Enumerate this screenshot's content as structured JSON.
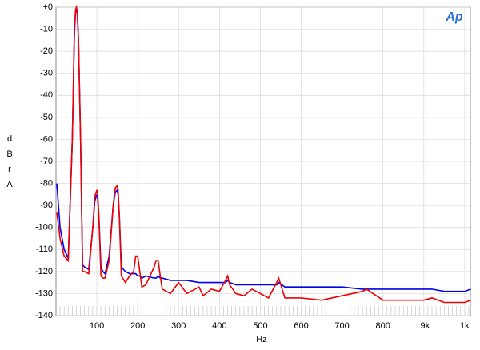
{
  "chart_data": {
    "type": "line",
    "logo": "Ap",
    "xlabel": "Hz",
    "ylabel": "dBr",
    "ylabel_unit": "A",
    "x": [
      2,
      10,
      20,
      30,
      40,
      45,
      48,
      50,
      52,
      55,
      60,
      65,
      70,
      80,
      90,
      95,
      100,
      102,
      105,
      110,
      115,
      120,
      130,
      140,
      145,
      150,
      152,
      155,
      160,
      170,
      180,
      190,
      195,
      200,
      205,
      210,
      220,
      240,
      245,
      250,
      255,
      260,
      280,
      300,
      320,
      350,
      360,
      380,
      400,
      415,
      420,
      425,
      440,
      460,
      480,
      500,
      520,
      540,
      545,
      560,
      600,
      650,
      700,
      750,
      760,
      800,
      850,
      900,
      920,
      950,
      1000,
      1015
    ],
    "series": [
      {
        "color": "#0000ee",
        "values": [
          -80,
          -100,
          -110,
          -114,
          -60,
          -12,
          -2,
          0,
          -3,
          -15,
          -60,
          -117,
          -118,
          -119,
          -100,
          -88,
          -85,
          -87,
          -95,
          -118,
          -120,
          -121,
          -113,
          -90,
          -84,
          -83,
          -85,
          -95,
          -118,
          -120,
          -121,
          -121,
          -121,
          -122,
          -122,
          -123,
          -122,
          -123,
          -123,
          -122,
          -123,
          -123,
          -124,
          -124,
          -124,
          -125,
          -125,
          -125,
          -125,
          -125,
          -124,
          -125,
          -126,
          -126,
          -126,
          -126,
          -126,
          -126,
          -125,
          -127,
          -127,
          -127,
          -127,
          -128,
          -128,
          -128,
          -128,
          -128,
          -128,
          -129,
          -129,
          -128
        ]
      },
      {
        "color": "#ee0000",
        "values": [
          -93,
          -105,
          -113,
          -115,
          -60,
          -10,
          -1,
          0,
          -2,
          -15,
          -60,
          -120,
          -120,
          -121,
          -100,
          -86,
          -83,
          -85,
          -95,
          -122,
          -123,
          -123,
          -115,
          -90,
          -82,
          -81,
          -83,
          -95,
          -122,
          -125,
          -122,
          -120,
          -113,
          -113,
          -120,
          -127,
          -126,
          -118,
          -115,
          -115,
          -122,
          -128,
          -130,
          -125,
          -130,
          -127,
          -131,
          -128,
          -129,
          -124,
          -122,
          -126,
          -130,
          -131,
          -128,
          -130,
          -132,
          -125,
          -123,
          -132,
          -132,
          -133,
          -131,
          -129,
          -128,
          -133,
          -133,
          -133,
          -132,
          -134,
          -134,
          -133
        ]
      }
    ],
    "xlim": [
      0,
      1014
    ],
    "ylim": [
      -140,
      0
    ],
    "xticks": [
      100,
      200,
      300,
      400,
      500,
      600,
      700,
      800,
      {
        "value": 900,
        "label": ".9k"
      },
      {
        "value": 1000,
        "label": "1k"
      }
    ],
    "yticks": [
      {
        "value": 0,
        "label": "+0"
      },
      -10,
      -20,
      -30,
      -40,
      -50,
      -60,
      -70,
      -80,
      -90,
      -100,
      -110,
      -120,
      -130,
      -140
    ],
    "grid": true
  }
}
